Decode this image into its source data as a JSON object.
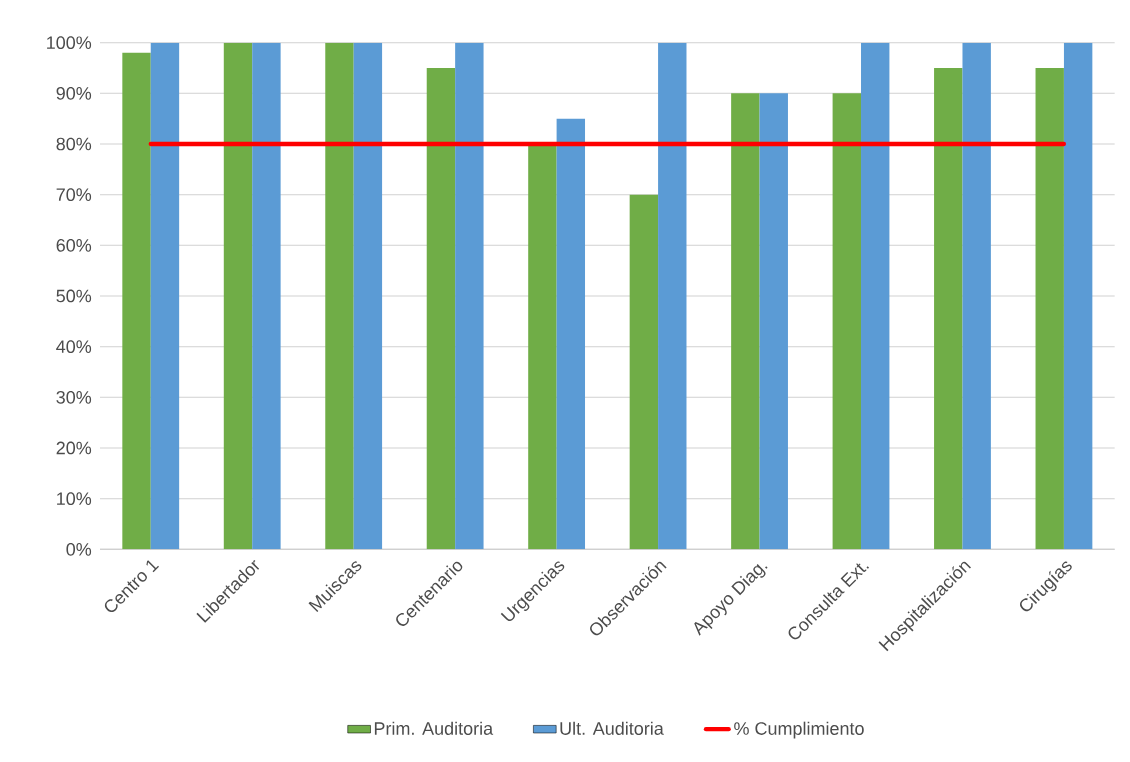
{
  "chart_data": {
    "type": "bar",
    "categories": [
      "Centro 1",
      "Libertador",
      "Muiscas",
      "Centenario",
      "Urgencias",
      "Observación",
      "Apoyo Diag.",
      "Consulta Ext.",
      "Hospitalización",
      "Cirugías"
    ],
    "series": [
      {
        "name": "Prim. Auditoria",
        "color": "#70ad47",
        "values": [
          98,
          100,
          100,
          95,
          80,
          70,
          90,
          90,
          95,
          95
        ]
      },
      {
        "name": "Ult. Auditoria",
        "color": "#5b9bd5",
        "values": [
          100,
          100,
          100,
          100,
          85,
          100,
          90,
          100,
          100,
          100
        ]
      },
      {
        "name": "% Cumplimiento",
        "type": "line",
        "color": "#ff0000",
        "marker": "none",
        "values": [
          80,
          80,
          80,
          80,
          80,
          80,
          80,
          80,
          80,
          80
        ]
      }
    ],
    "ylim": [
      0,
      100
    ],
    "yticks": [
      {
        "value": 0,
        "label": "0%"
      },
      {
        "value": 10,
        "label": "10%"
      },
      {
        "value": 20,
        "label": "20%"
      },
      {
        "value": 30,
        "label": "30%"
      },
      {
        "value": 40,
        "label": "40%"
      },
      {
        "value": 50,
        "label": "50%"
      },
      {
        "value": 60,
        "label": "60%"
      },
      {
        "value": 70,
        "label": "70%"
      },
      {
        "value": 80,
        "label": "80%"
      },
      {
        "value": 90,
        "label": "90%"
      },
      {
        "value": 100,
        "label": "100%"
      }
    ],
    "grid": "y",
    "legend": "bottom"
  }
}
